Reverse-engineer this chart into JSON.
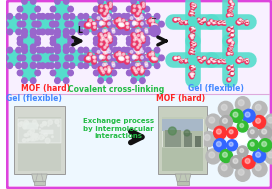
{
  "fig_width": 2.72,
  "fig_height": 1.89,
  "dpi": 100,
  "outer_border_color": "#dd44dd",
  "label_mof_hard_top": "MOF (hard)",
  "label_covalent": "Covalent cross-linking",
  "label_gel_flexible_top": "Gel (flexible)",
  "label_gel_flexible_bottom": "Gel (flexible)",
  "label_mof_hard_bottom": "MOF (hard)",
  "label_exchange": "Exchange process\nby intermolecular\ninteractions",
  "color_mof_label": "#ff2222",
  "color_covalent_label": "#22bb44",
  "color_gel_label": "#4488ff",
  "color_exchange_label": "#22bb44",
  "color_mof_bottom_label": "#ff2222",
  "color_gel_bottom_label": "#4488ff",
  "teal": "#55ddcc",
  "purple": "#9966cc",
  "dark": "#111111",
  "pink": "#ee3366",
  "white": "#ffffff"
}
